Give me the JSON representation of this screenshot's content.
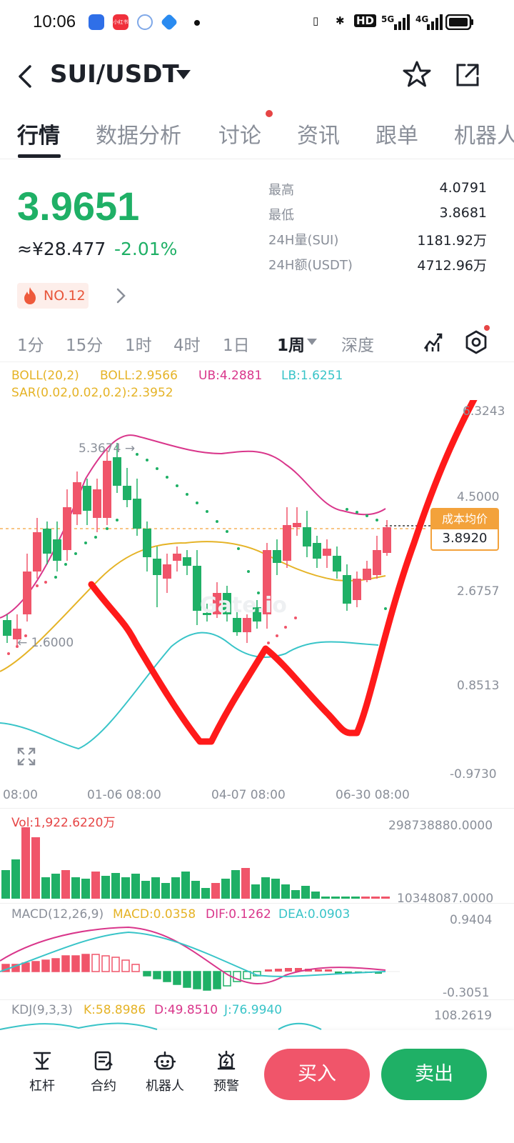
{
  "status_bar": {
    "time": "10:06",
    "app_badge": "小红书",
    "indicators": [
      "HD",
      "5G",
      "4G"
    ]
  },
  "header": {
    "pair": "SUI/USDT",
    "icons": [
      "back-arrow-icon",
      "dropdown-caret-icon",
      "star-icon",
      "share-icon"
    ]
  },
  "tabs": [
    "行情",
    "数据分析",
    "讨论",
    "资讯",
    "跟单",
    "机器人"
  ],
  "ticker": {
    "last_price": "3.9651",
    "cny": "≈¥28.477",
    "change": "-2.01%",
    "rank": "NO.12",
    "stats": [
      {
        "label": "最高",
        "value": "4.0791"
      },
      {
        "label": "最低",
        "value": "3.8681"
      },
      {
        "label": "24H量(SUI)",
        "value": "1181.92万"
      },
      {
        "label": "24H额(USDT)",
        "value": "4712.96万"
      }
    ]
  },
  "periods": [
    "1分",
    "15分",
    "1时",
    "4时",
    "1日",
    "1周",
    "深度"
  ],
  "active_period": "1周",
  "main_chart": {
    "indicators": {
      "boll": "BOLL(20,2)",
      "boll_val": "BOLL:2.9566",
      "ub": "UB:4.2881",
      "lb": "LB:1.6251",
      "sar": "SAR(0.02,0.02,0.2):2.3952"
    },
    "y_ticks": [
      "6.3243",
      "4.5000",
      "2.6757",
      "0.8513",
      "-0.9730"
    ],
    "x_ticks": [
      "08:00",
      "01-06 08:00",
      "04-07 08:00",
      "06-30 08:00"
    ],
    "high_marker": "5.3674",
    "low_marker": "1.6000",
    "watermark": "Gate.io",
    "cost_label": "成本均价",
    "cost_value": "3.8920"
  },
  "volume": {
    "label": "Vol:1,922.6220万",
    "max": "298738880.0000",
    "min": "10348087.0000"
  },
  "macd": {
    "label": "MACD(12,26,9)",
    "macd": "MACD:0.0358",
    "dif": "DIF:0.1262",
    "dea": "DEA:0.0903",
    "max": "0.9404",
    "min": "-0.3051"
  },
  "kdj": {
    "label": "KDJ(9,3,3)",
    "k": "K:58.8986",
    "d": "D:49.8510",
    "j": "J:76.9940",
    "max": "108.2619"
  },
  "bottom_nav": [
    {
      "label": "杠杆",
      "icon": "leverage-icon"
    },
    {
      "label": "合约",
      "icon": "contract-icon"
    },
    {
      "label": "机器人",
      "icon": "robot-icon"
    },
    {
      "label": "预警",
      "icon": "alarm-icon"
    }
  ],
  "actions": {
    "buy": "买入",
    "sell": "卖出"
  },
  "colors": {
    "up": "#1fb066",
    "down": "#f0556a",
    "accent": "#f3a23b",
    "drawing": "#ff1a1a"
  }
}
